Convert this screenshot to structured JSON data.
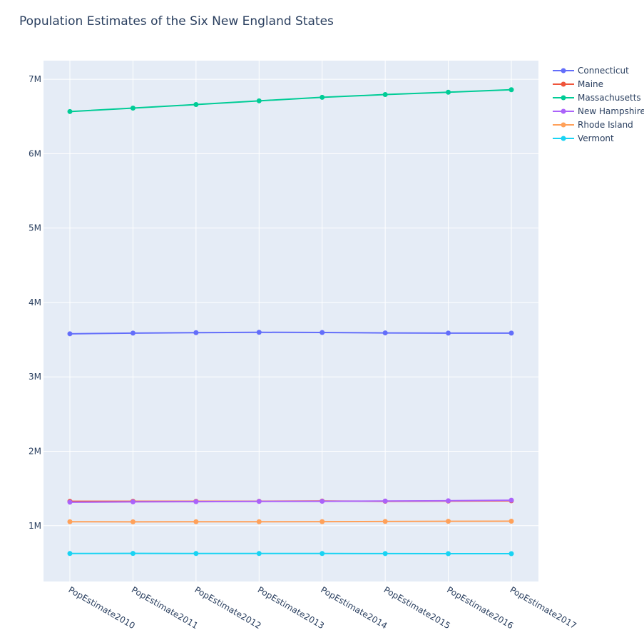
{
  "chart_data": {
    "type": "line",
    "title": "Population Estimates of the Six New England States",
    "xlabel": "",
    "ylabel": "",
    "categories": [
      "PopEstimate2010",
      "PopEstimate2011",
      "PopEstimate2012",
      "PopEstimate2013",
      "PopEstimate2014",
      "PopEstimate2015",
      "PopEstimate2016",
      "PopEstimate2017"
    ],
    "ylim": [
      250000,
      7250000
    ],
    "yticks": [
      1000000,
      2000000,
      3000000,
      4000000,
      5000000,
      6000000,
      7000000
    ],
    "ytick_labels": [
      "1M",
      "2M",
      "3M",
      "4M",
      "5M",
      "6M",
      "7M"
    ],
    "grid": true,
    "legend_position": "top-right",
    "series": [
      {
        "name": "Connecticut",
        "color": "#636efa",
        "values": [
          3579000,
          3588000,
          3594000,
          3599000,
          3596000,
          3591000,
          3588000,
          3588000
        ]
      },
      {
        "name": "Maine",
        "color": "#ef553b",
        "values": [
          1327000,
          1328000,
          1328000,
          1328000,
          1331000,
          1328000,
          1331000,
          1335000
        ]
      },
      {
        "name": "Massachusetts",
        "color": "#00cc96",
        "values": [
          6566000,
          6612000,
          6660000,
          6710000,
          6757000,
          6794000,
          6826000,
          6859000
        ]
      },
      {
        "name": "New Hampshire",
        "color": "#ab63fa",
        "values": [
          1316000,
          1320000,
          1323000,
          1326000,
          1328000,
          1331000,
          1335000,
          1342000
        ]
      },
      {
        "name": "Rhode Island",
        "color": "#ffa15a",
        "values": [
          1053000,
          1052000,
          1053000,
          1053000,
          1054000,
          1057000,
          1059000,
          1060000
        ]
      },
      {
        "name": "Vermont",
        "color": "#19d3f3",
        "values": [
          626000,
          627000,
          626000,
          626000,
          626000,
          625000,
          624000,
          624000
        ]
      }
    ]
  }
}
